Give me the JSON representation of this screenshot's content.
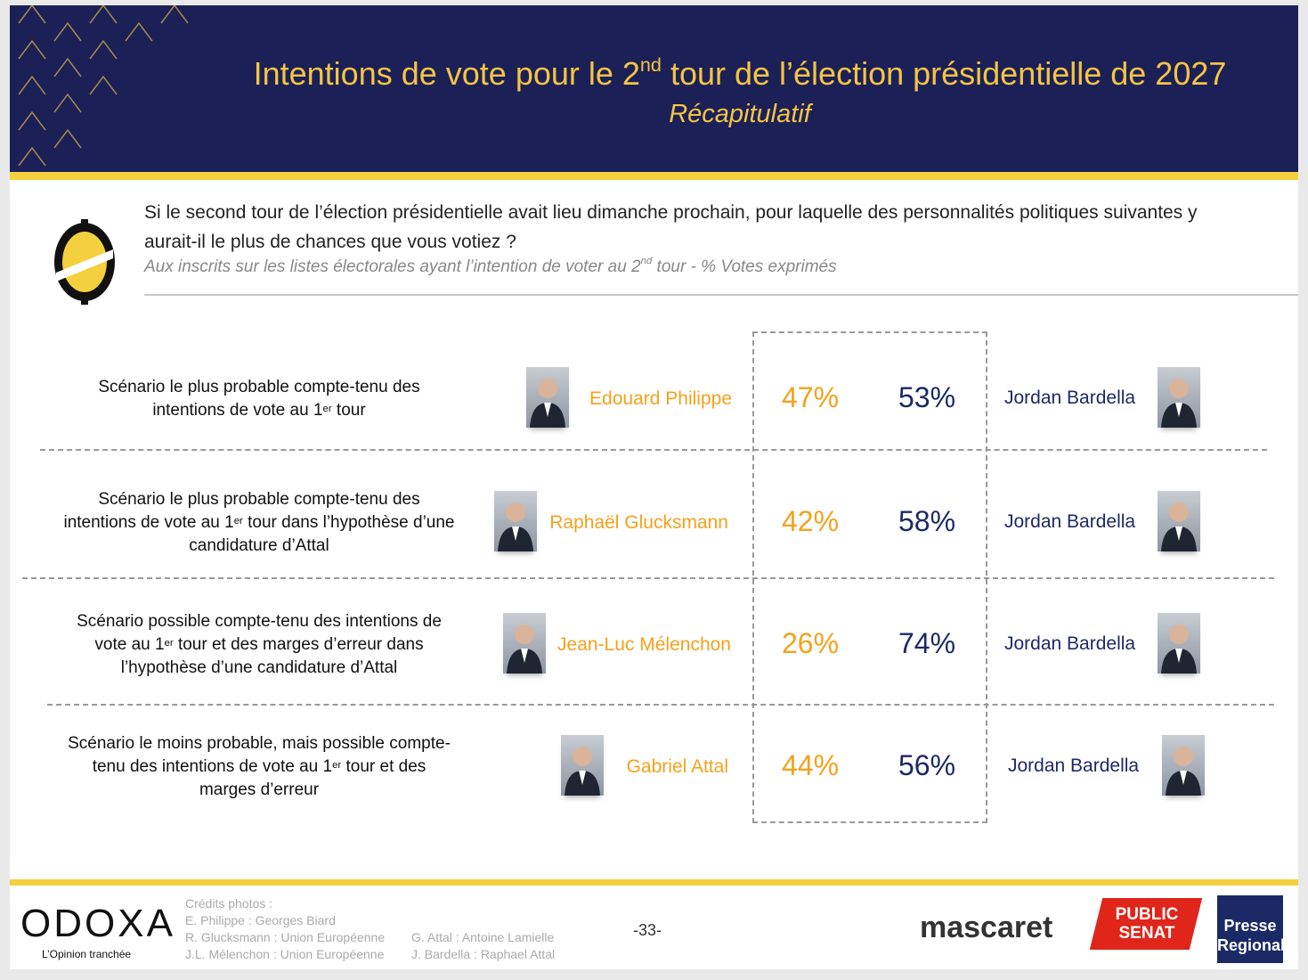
{
  "header": {
    "title": [
      "Intentions de vote pour le 2",
      "nd",
      " tour de l’élection présidentielle de 2027"
    ],
    "subtitle": "Récapitulatif"
  },
  "question": {
    "text": "Si le second tour de l’élection présidentielle avait lieu dimanche prochain, pour laquelle des personnalités politiques suivantes y aurait-il le plus de chances que vous votiez ?",
    "note": [
      "Aux inscrits sur les listes électorales ayant l’intention de voter au 2",
      "nd",
      " tour  - % Votes exprimés"
    ]
  },
  "scenarios": [
    {
      "label": [
        "Scénario le plus probable compte-tenu des intentions de vote au 1",
        "er",
        " tour"
      ],
      "left": {
        "name": "Edouard Philippe",
        "pct": "47%"
      },
      "right": {
        "name": "Jordan Bardella",
        "pct": "53%"
      }
    },
    {
      "label": [
        "Scénario le plus probable compte-tenu des intentions de vote au 1",
        "er",
        " tour dans l’hypothèse d’une candidature d’Attal"
      ],
      "left": {
        "name": "Raphaël Glucksmann",
        "pct": "42%"
      },
      "right": {
        "name": "Jordan Bardella",
        "pct": "58%"
      }
    },
    {
      "label": [
        "Scénario possible compte-tenu des intentions de vote au 1",
        "er",
        " tour et des marges d’erreur dans l’hypothèse d’une candidature d’Attal"
      ],
      "left": {
        "name": "Jean-Luc Mélenchon",
        "pct": "26%"
      },
      "right": {
        "name": "Jordan Bardella",
        "pct": "74%"
      }
    },
    {
      "label": [
        "Scénario le moins probable, mais possible compte-tenu des intentions de vote au 1",
        "er",
        " tour et des marges d’erreur"
      ],
      "left": {
        "name": "Gabriel Attal",
        "pct": "44%"
      },
      "right": {
        "name": "Jordan Bardella",
        "pct": "56%"
      }
    }
  ],
  "footer": {
    "brand": "ODOXA",
    "tagline": "L’Opinion tranchée",
    "credits_title": "Crédits photos :",
    "credits": [
      "E. Philippe : Georges Biard",
      "R. Glucksmann : Union Européenne",
      "J.L. Mélenchon : Union Européenne"
    ],
    "credits2": [
      "G. Attal : Antoine Lamielle",
      "J. Bardella : Raphael Attal"
    ],
    "page": "-33-",
    "partners": [
      "mascaret",
      "PUBLIC SENAT",
      "Presse Regionale"
    ]
  }
}
